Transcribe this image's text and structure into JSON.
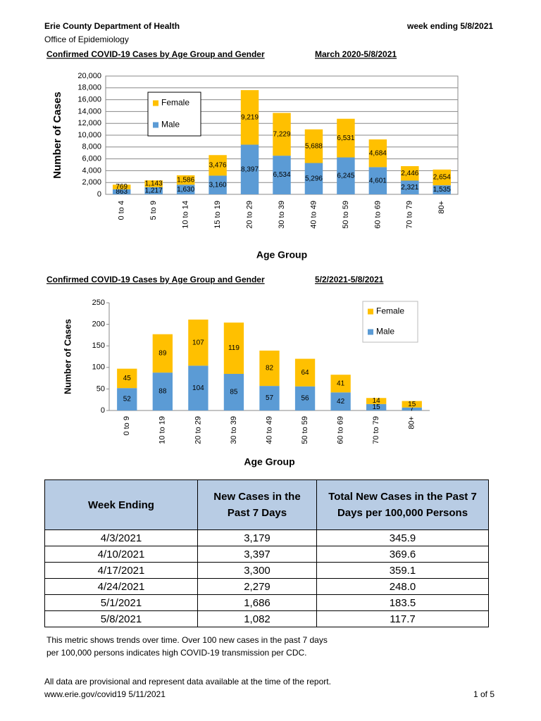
{
  "header": {
    "organization": "Erie County Department of Health",
    "office": "Office of Epidemiology",
    "week_ending": "week ending 5/8/2021"
  },
  "chart_data": [
    {
      "type": "stacked_bar",
      "title": "Confirmed COVID-19 Cases by Age Group and Gender",
      "subtitle": "March 2020-5/8/2021",
      "x_label": "Age Group",
      "y_label": "Number of Cases",
      "categories": [
        "0 to 4",
        "5 to 9",
        "10 to 14",
        "15 to 19",
        "20 to 29",
        "30 to 39",
        "40 to 49",
        "50 to 59",
        "60 to 69",
        "70 to 79",
        "80+"
      ],
      "series": [
        {
          "name": "Male",
          "color": "#5b9bd5",
          "values": [
            863,
            1217,
            1630,
            3160,
            8397,
            6534,
            5296,
            6245,
            4601,
            2321,
            1535
          ],
          "value_labels": [
            "863",
            "1,217",
            "1,630",
            "3,160",
            "8,397",
            "6,534",
            "5,296",
            "6,245",
            "4,601",
            "2,321",
            "1,535"
          ]
        },
        {
          "name": "Female",
          "color": "#ffc000",
          "values": [
            769,
            1143,
            1586,
            3476,
            9219,
            7229,
            5688,
            6531,
            4684,
            2446,
            2654
          ],
          "value_labels": [
            "769",
            "1,143",
            "1,586",
            "3,476",
            "9,219",
            "7,229",
            "5,688",
            "6,531",
            "4,684",
            "2,446",
            "2,654"
          ]
        }
      ],
      "ylim": [
        0,
        20000
      ],
      "yticks": [
        0,
        {
          "value": 2000,
          "label": "2,000"
        },
        {
          "value": 4000,
          "label": "4,000"
        },
        {
          "value": 6000,
          "label": "6,000"
        },
        {
          "value": 8000,
          "label": "8,000"
        },
        {
          "value": 10000,
          "label": "10,000"
        },
        {
          "value": 12000,
          "label": "12,000"
        },
        {
          "value": 14000,
          "label": "14,000"
        },
        {
          "value": 16000,
          "label": "16,000"
        },
        {
          "value": 18000,
          "label": "18,000"
        },
        {
          "value": 20000,
          "label": "20,000"
        }
      ],
      "grid": true,
      "legend": "upper left"
    },
    {
      "type": "stacked_bar",
      "title": "Confirmed COVID-19 Cases by Age Group and Gender",
      "subtitle": "5/2/2021-5/8/2021",
      "x_label": "Age Group",
      "y_label": "Number of Cases",
      "categories": [
        "0 to 9",
        "10 to 19",
        "20 to 29",
        "30 to 39",
        "40 to 49",
        "50 to 59",
        "60 to 69",
        "70 to 79",
        "80+"
      ],
      "series": [
        {
          "name": "Male",
          "color": "#5b9bd5",
          "values": [
            52,
            88,
            104,
            85,
            57,
            56,
            42,
            15,
            7
          ]
        },
        {
          "name": "Female",
          "color": "#ffc000",
          "values": [
            45,
            89,
            107,
            119,
            82,
            64,
            41,
            14,
            15
          ]
        }
      ],
      "ylim": [
        0,
        250
      ],
      "yticks": [
        0,
        50,
        100,
        150,
        200,
        250
      ],
      "grid": false,
      "legend": "upper right"
    }
  ],
  "table": {
    "columns": [
      "Week Ending",
      "New Cases in the Past 7 Days",
      "Total New Cases in the Past 7 Days per 100,000 Persons"
    ],
    "rows": [
      [
        "4/3/2021",
        "3,179",
        "345.9"
      ],
      [
        "4/10/2021",
        "3,397",
        "369.6"
      ],
      [
        "4/17/2021",
        "3,300",
        "359.1"
      ],
      [
        "4/24/2021",
        "2,279",
        "248.0"
      ],
      [
        "5/1/2021",
        "1,686",
        "183.5"
      ],
      [
        "5/8/2021",
        "1,082",
        "117.7"
      ]
    ]
  },
  "footer": {
    "note": [
      "This metric shows trends over time. Over 100 new cases in the past 7 days",
      "per 100,000 persons indicates high COVID-19 transmission per CDC."
    ],
    "disclaimer": "All data are provisional and represent data available at the time of the report.",
    "source": "www.erie.gov/covid19 5/11/2021",
    "page": "1 of 5"
  }
}
